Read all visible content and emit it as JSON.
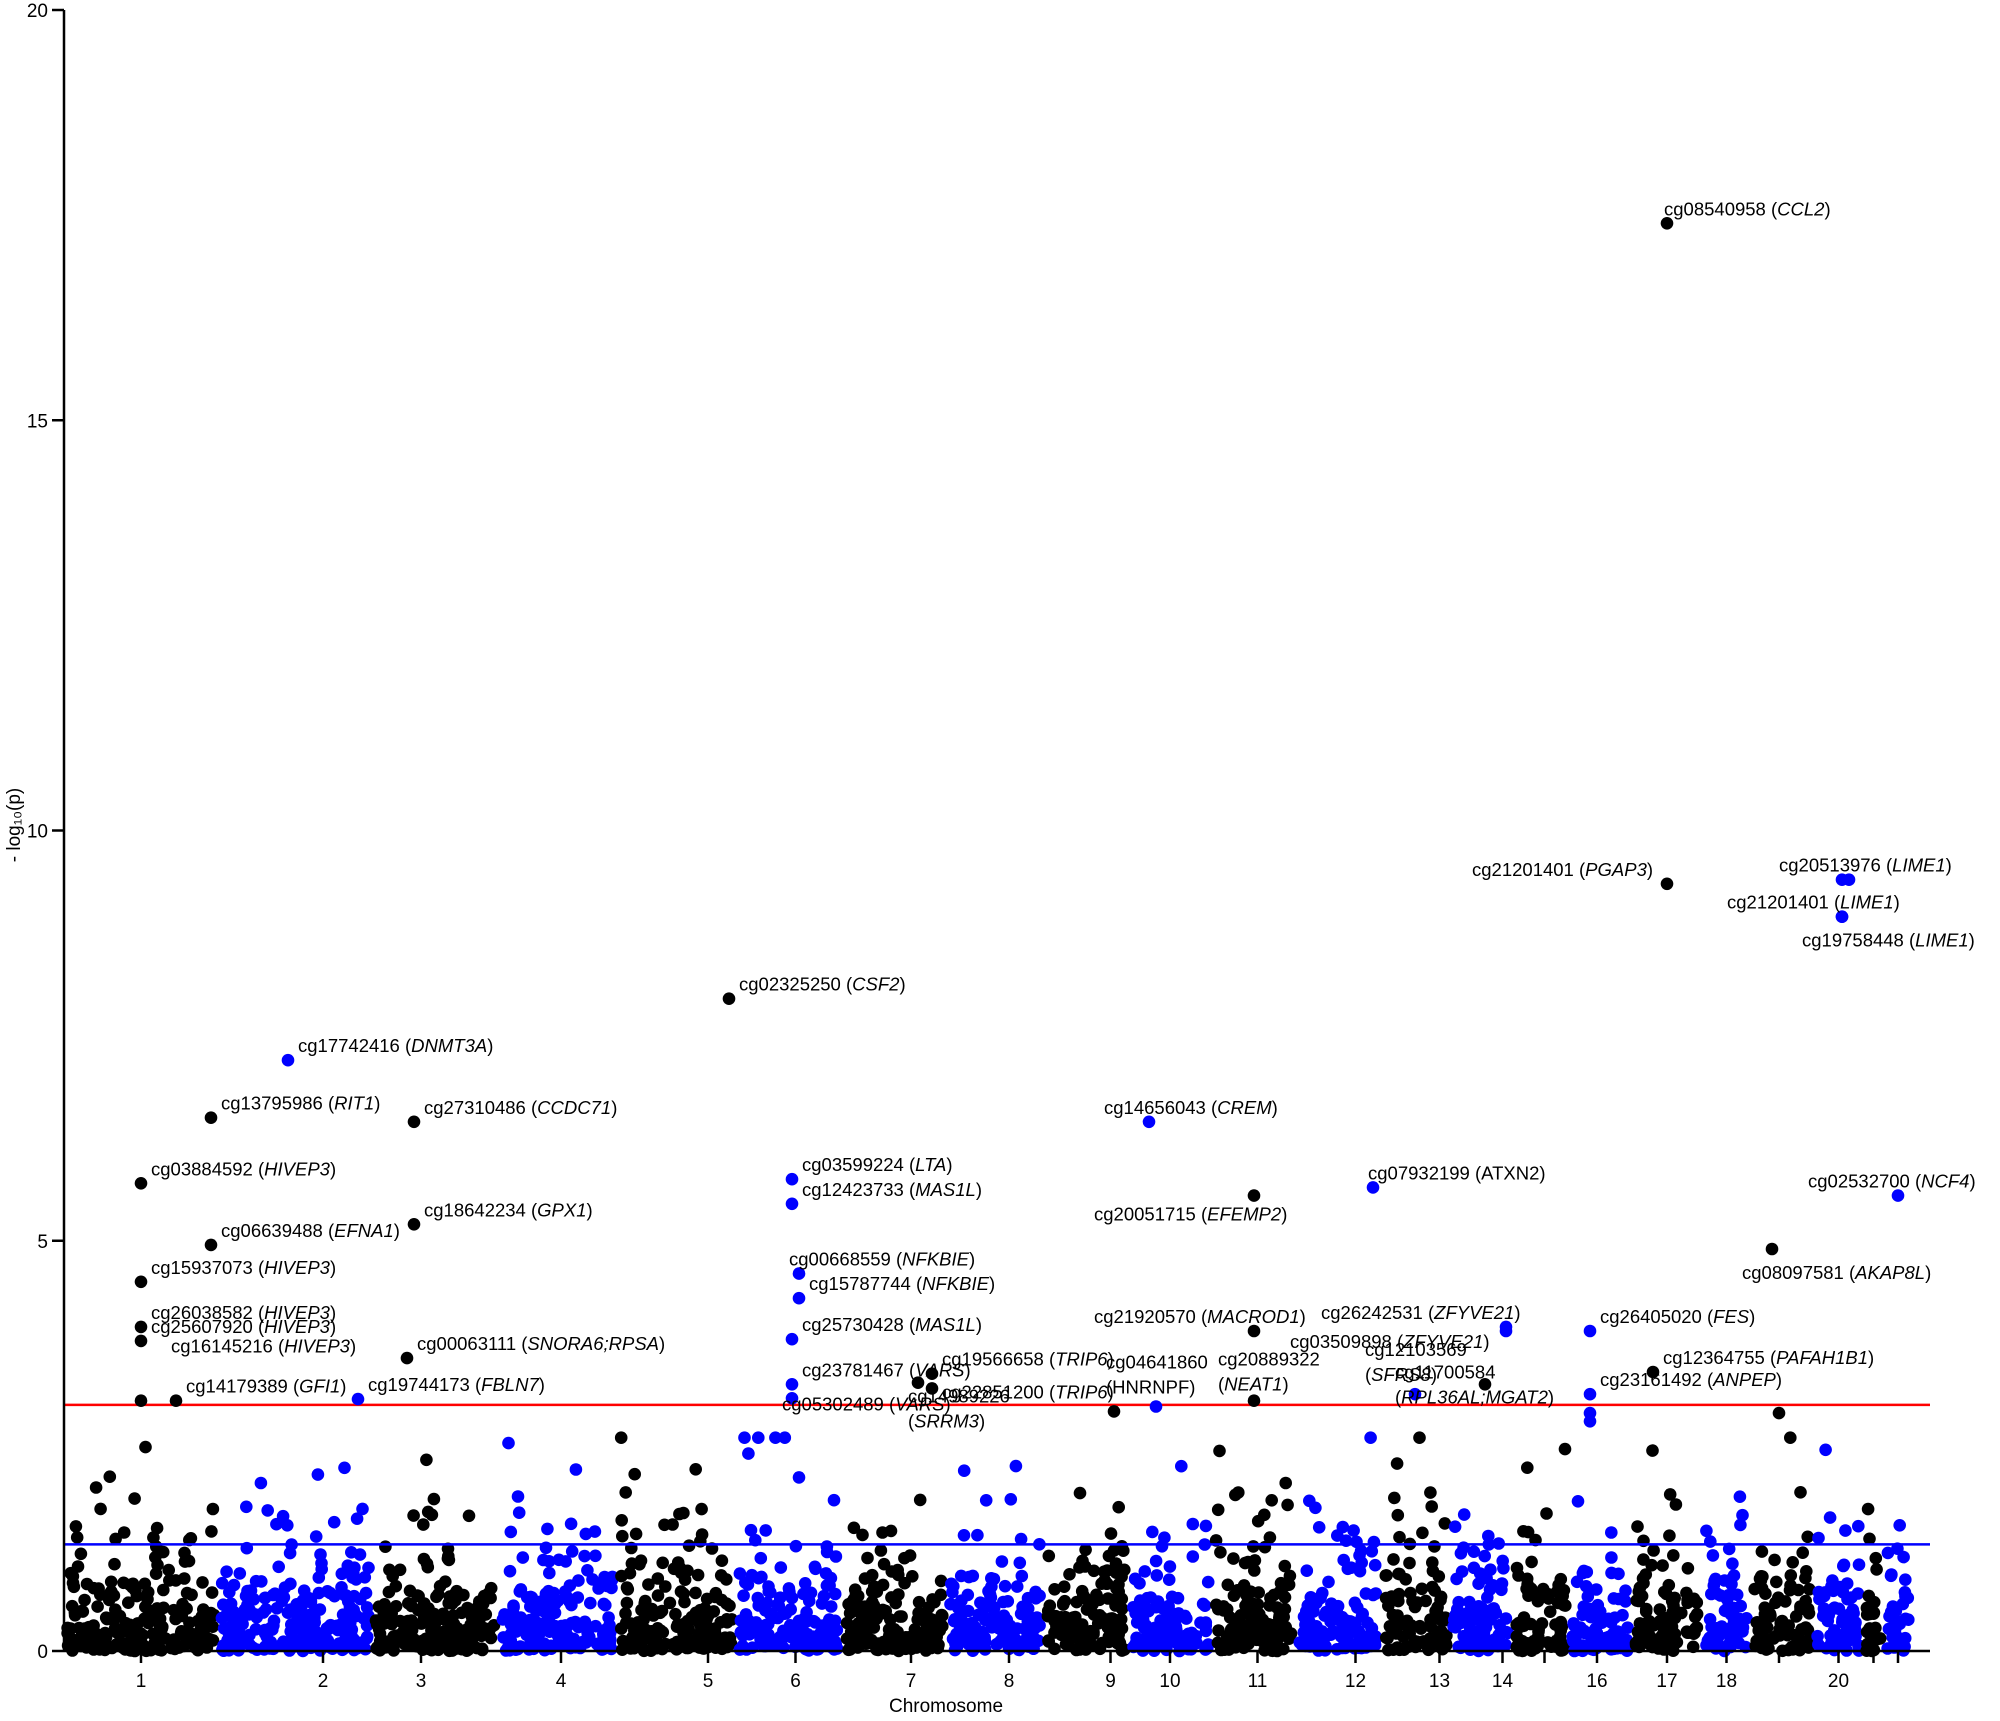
{
  "colors": {
    "odd": "#000000",
    "even": "#0000ff",
    "threshold_bonferroni": "#ff0000",
    "threshold_suggestive": "#0000ff",
    "axis": "#000000"
  },
  "chart_data": {
    "type": "scatter",
    "subtype": "manhattan",
    "title": "",
    "xlabel": "Chromosome",
    "ylabel": "- log₁₀(p)",
    "ylim": [
      0,
      20
    ],
    "yticks": [
      0,
      5,
      10,
      15,
      20
    ],
    "xlim": [
      0,
      300
    ],
    "chromosomes": [
      {
        "label": "1",
        "start": 0,
        "end": 22,
        "center": 11,
        "tick_label": "1",
        "color": "odd"
      },
      {
        "label": "2",
        "start": 22,
        "end": 44,
        "center": 37,
        "tick_label": "2",
        "color": "even"
      },
      {
        "label": "3",
        "start": 44,
        "end": 62,
        "center": 51,
        "tick_label": "3",
        "color": "odd"
      },
      {
        "label": "4",
        "start": 62,
        "end": 79,
        "center": 71,
        "tick_label": "4",
        "color": "even"
      },
      {
        "label": "5",
        "start": 79,
        "end": 96,
        "center": 92,
        "tick_label": "5",
        "color": "odd"
      },
      {
        "label": "6",
        "start": 96,
        "end": 111,
        "center": 104.5,
        "tick_label": "6",
        "color": "even"
      },
      {
        "label": "7",
        "start": 111,
        "end": 126,
        "center": 121,
        "tick_label": "7",
        "color": "odd"
      },
      {
        "label": "8",
        "start": 126,
        "end": 140,
        "center": 135,
        "tick_label": "8",
        "color": "even"
      },
      {
        "label": "9",
        "start": 140,
        "end": 152,
        "center": 149.5,
        "tick_label": "9",
        "color": "odd"
      },
      {
        "label": "10",
        "start": 152,
        "end": 164,
        "center": 158,
        "tick_label": "10",
        "color": "even"
      },
      {
        "label": "11",
        "start": 164,
        "end": 176,
        "center": 170.5,
        "tick_label": "11",
        "color": "odd"
      },
      {
        "label": "12",
        "start": 176,
        "end": 188,
        "center": 184.5,
        "tick_label": "12",
        "color": "even"
      },
      {
        "label": "13",
        "start": 188,
        "end": 198,
        "center": 196.5,
        "tick_label": "13",
        "color": "odd"
      },
      {
        "label": "14",
        "start": 198,
        "end": 207,
        "center": 205.5,
        "tick_label": "14",
        "color": "even"
      },
      {
        "label": "15",
        "start": 207,
        "end": 215,
        "center": 211.5,
        "tick_label": "",
        "color": "odd"
      },
      {
        "label": "16",
        "start": 215,
        "end": 224,
        "center": 219,
        "tick_label": "16",
        "color": "even"
      },
      {
        "label": "17",
        "start": 224,
        "end": 234,
        "center": 229,
        "tick_label": "17",
        "color": "odd"
      },
      {
        "label": "18",
        "start": 234,
        "end": 241,
        "center": 237.5,
        "tick_label": "18",
        "color": "even"
      },
      {
        "label": "19",
        "start": 241,
        "end": 250,
        "center": 245,
        "tick_label": "",
        "color": "odd"
      },
      {
        "label": "20",
        "start": 250,
        "end": 257,
        "center": 253.5,
        "tick_label": "20",
        "color": "even"
      },
      {
        "label": "21",
        "start": 257,
        "end": 260,
        "center": 258.5,
        "tick_label": "",
        "color": "odd"
      },
      {
        "label": "22",
        "start": 260,
        "end": 264,
        "center": 262,
        "tick_label": "",
        "color": "even"
      }
    ],
    "thresholds": [
      {
        "name": "bonferroni",
        "y": 3.0,
        "color": "#ff0000"
      },
      {
        "name": "suggestive",
        "y": 1.3,
        "color": "#0000ff"
      }
    ],
    "background_points": {
      "n": 2600,
      "seed": 20240517,
      "ymax": 2.6
    },
    "points": [
      {
        "chr": 1,
        "x": 11,
        "y": 5.7,
        "label_id": "cg03884592",
        "label_gene": "HIVEP3",
        "gene_italic": true
      },
      {
        "chr": 1,
        "x": 11,
        "y": 4.5,
        "label_id": "cg15937073",
        "label_gene": "HIVEP3",
        "gene_italic": true
      },
      {
        "chr": 1,
        "x": 11,
        "y": 3.95,
        "label_id": "cg26038582",
        "label_gene": "HIVEP3",
        "gene_italic": true
      },
      {
        "chr": 1,
        "x": 11,
        "y": 3.78,
        "label_id": "cg25607920",
        "label_gene": "HIVEP3",
        "gene_italic": true
      },
      {
        "chr": 1,
        "x": 11,
        "y": 3.05,
        "label_id": "cg16145216",
        "label_gene": "HIVEP3",
        "gene_italic": true
      },
      {
        "chr": 1,
        "x": 16,
        "y": 3.05,
        "label_id": "cg14179389",
        "label_gene": "GFI1",
        "gene_italic": true
      },
      {
        "chr": 1,
        "x": 21,
        "y": 6.5,
        "label_id": "cg13795986",
        "label_gene": "RIT1",
        "gene_italic": true
      },
      {
        "chr": 1,
        "x": 21,
        "y": 4.95,
        "label_id": "cg06639488",
        "label_gene": "EFNA1",
        "gene_italic": true
      },
      {
        "chr": 2,
        "x": 32,
        "y": 7.2,
        "label_id": "cg17742416",
        "label_gene": "DNMT3A",
        "gene_italic": true
      },
      {
        "chr": 2,
        "x": 42,
        "y": 3.07,
        "label_id": "cg19744173",
        "label_gene": "FBLN7",
        "gene_italic": true
      },
      {
        "chr": 3,
        "x": 50,
        "y": 6.45,
        "label_id": "cg27310486",
        "label_gene": "CCDC71",
        "gene_italic": true
      },
      {
        "chr": 3,
        "x": 50,
        "y": 5.2,
        "label_id": "cg18642234",
        "label_gene": "GPX1",
        "gene_italic": true
      },
      {
        "chr": 3,
        "x": 49,
        "y": 3.57,
        "label_id": "cg00063111",
        "label_gene": "SNORA6;RPSA",
        "gene_italic": true
      },
      {
        "chr": 5,
        "x": 95,
        "y": 7.95,
        "label_id": "cg02325250",
        "label_gene": "CSF2",
        "gene_italic": true
      },
      {
        "chr": 6,
        "x": 104,
        "y": 5.75,
        "label_id": "cg03599224",
        "label_gene": "LTA",
        "gene_italic": true
      },
      {
        "chr": 6,
        "x": 104,
        "y": 5.45,
        "label_id": "cg12423733",
        "label_gene": "MAS1L",
        "gene_italic": true
      },
      {
        "chr": 6,
        "x": 105,
        "y": 4.6,
        "label_id": "cg00668559",
        "label_gene": "NFKBIE",
        "gene_italic": true
      },
      {
        "chr": 6,
        "x": 105,
        "y": 4.3,
        "label_id": "cg15787744",
        "label_gene": "NFKBIE",
        "gene_italic": true
      },
      {
        "chr": 6,
        "x": 104,
        "y": 3.8,
        "label_id": "cg25730428",
        "label_gene": "MAS1L",
        "gene_italic": true
      },
      {
        "chr": 6,
        "x": 104,
        "y": 3.25,
        "label_id": "cg23781467",
        "label_gene": "VARS",
        "gene_italic": true
      },
      {
        "chr": 6,
        "x": 104,
        "y": 3.08,
        "label_id": "cg05302489",
        "label_gene": "VARS",
        "gene_italic": true
      },
      {
        "chr": 7,
        "x": 124,
        "y": 3.38,
        "label_id": "cg19566658",
        "label_gene": "TRIP6",
        "gene_italic": true
      },
      {
        "chr": 7,
        "x": 122,
        "y": 3.27,
        "label_id": "cg14989226",
        "label_gene": "SRRM3",
        "gene_italic": true,
        "label_lines": 2
      },
      {
        "chr": 7,
        "x": 124,
        "y": 3.2,
        "label_id": "cg22851200",
        "label_gene": "TRIP6",
        "gene_italic": true
      },
      {
        "chr": 9,
        "x": 150,
        "y": 2.92,
        "label_id": "",
        "label_gene": ""
      },
      {
        "chr": 10,
        "x": 155,
        "y": 6.45,
        "label_id": "cg14656043",
        "label_gene": "CREM",
        "gene_italic": true
      },
      {
        "chr": 10,
        "x": 156,
        "y": 2.98,
        "label_id": "cg04641860",
        "label_gene": "HNRNPF",
        "gene_italic": false,
        "label_lines": 2
      },
      {
        "chr": 11,
        "x": 170,
        "y": 5.55,
        "label_id": "cg20051715",
        "label_gene": "EFEMP2",
        "gene_italic": true
      },
      {
        "chr": 11,
        "x": 170,
        "y": 3.9,
        "label_id": "cg21920570",
        "label_gene": "MACROD1",
        "gene_italic": true
      },
      {
        "chr": 11,
        "x": 170,
        "y": 3.05,
        "label_id": "cg20889322",
        "label_gene": "NEAT1",
        "gene_italic": true,
        "label_lines": 2
      },
      {
        "chr": 12,
        "x": 187,
        "y": 5.65,
        "label_id": "cg07932199",
        "label_gene": "ATXN2",
        "gene_italic": false
      },
      {
        "chr": 12,
        "x": 193,
        "y": 3.13,
        "label_id": "cg12103569",
        "label_gene": "SFRS8",
        "gene_italic": true,
        "label_lines": 2
      },
      {
        "chr": 14,
        "x": 206,
        "y": 3.95,
        "label_id": "cg26242531",
        "label_gene": "ZFYVE21",
        "gene_italic": true
      },
      {
        "chr": 14,
        "x": 206,
        "y": 3.9,
        "label_id": "cg03509898",
        "label_gene": "ZFYVE21",
        "gene_italic": true
      },
      {
        "chr": 13,
        "x": 203,
        "y": 3.25,
        "label_id": "cg11700584",
        "label_gene": "RPL36AL;MGAT2",
        "gene_italic": true,
        "label_lines": 2
      },
      {
        "chr": 16,
        "x": 218,
        "y": 3.9,
        "label_id": "cg26405020",
        "label_gene": "FES",
        "gene_italic": true
      },
      {
        "chr": 16,
        "x": 218,
        "y": 3.13,
        "label_id": "cg23161492",
        "label_gene": "ANPEP",
        "gene_italic": true
      },
      {
        "chr": 16,
        "x": 218,
        "y": 2.9,
        "label_id": "",
        "label_gene": ""
      },
      {
        "chr": 16,
        "x": 218,
        "y": 2.8,
        "label_id": "",
        "label_gene": ""
      },
      {
        "chr": 17,
        "x": 227,
        "y": 3.4,
        "label_id": "cg12364755",
        "label_gene": "PAFAH1B1",
        "gene_italic": true
      },
      {
        "chr": 17,
        "x": 229,
        "y": 17.4,
        "label_id": "cg08540958",
        "label_gene": "CCL2",
        "gene_italic": true
      },
      {
        "chr": 17,
        "x": 229,
        "y": 9.35,
        "label_id": "cg21201401",
        "label_gene": "PGAP3",
        "gene_italic": true
      },
      {
        "chr": 19,
        "x": 244,
        "y": 4.9,
        "label_id": "cg08097581",
        "label_gene": "AKAP8L",
        "gene_italic": true
      },
      {
        "chr": 19,
        "x": 245,
        "y": 2.9,
        "label_id": "",
        "label_gene": ""
      },
      {
        "chr": 20,
        "x": 255,
        "y": 9.4,
        "label_id": "cg20513976",
        "label_gene": "LIME1",
        "gene_italic": true
      },
      {
        "chr": 20,
        "x": 254,
        "y": 9.4,
        "label_id": "",
        "label_gene": ""
      },
      {
        "chr": 20,
        "x": 254,
        "y": 8.95,
        "label_id": "cg21201401",
        "label_gene": "LIME1",
        "gene_italic": true
      },
      {
        "chr": 20,
        "x": 254,
        "y": 8.95,
        "label_id": "cg19758448",
        "label_gene": "LIME1",
        "gene_italic": true
      },
      {
        "chr": 22,
        "x": 262,
        "y": 5.55,
        "label_id": "cg02532700",
        "label_gene": "NCF4",
        "gene_italic": true
      }
    ]
  }
}
